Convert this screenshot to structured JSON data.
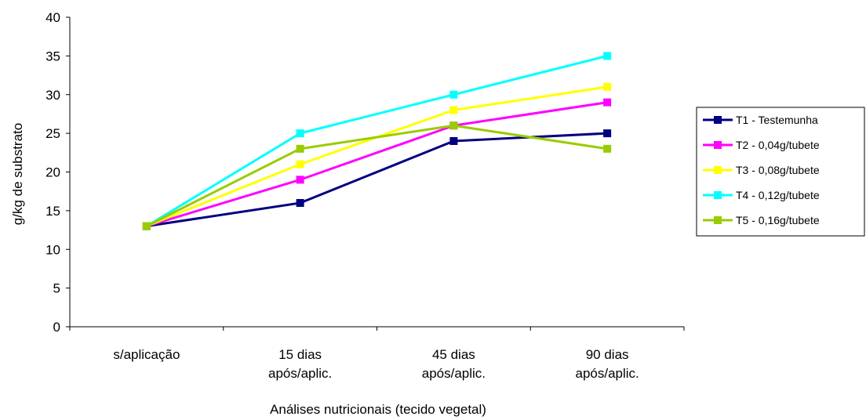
{
  "chart_data": {
    "type": "line",
    "categories": [
      [
        "s/aplicação"
      ],
      [
        "15 dias",
        "após/aplic."
      ],
      [
        "45 dias",
        "após/aplic."
      ],
      [
        "90 dias",
        "após/aplic."
      ]
    ],
    "xlabel": "Análises nutricionais (tecido vegetal)",
    "ylabel": "g/kg de substrato",
    "ylim": [
      0,
      40
    ],
    "yticks": [
      0,
      5,
      10,
      15,
      20,
      25,
      30,
      35,
      40
    ],
    "grid": false,
    "legend_position": "right",
    "series": [
      {
        "name": "T1 - Testemunha",
        "color": "#000080",
        "values": [
          13,
          16,
          24,
          25
        ]
      },
      {
        "name": "T2 - 0,04g/tubete",
        "color": "#ff00ff",
        "values": [
          13,
          19,
          26,
          29
        ]
      },
      {
        "name": "T3 - 0,08g/tubete",
        "color": "#ffff00",
        "values": [
          13,
          21,
          28,
          31
        ]
      },
      {
        "name": "T4 - 0,12g/tubete",
        "color": "#00ffff",
        "values": [
          13,
          25,
          30,
          35
        ]
      },
      {
        "name": "T5 - 0,16g/tubete",
        "color": "#99cc00",
        "values": [
          13,
          23,
          26,
          23
        ]
      }
    ]
  }
}
